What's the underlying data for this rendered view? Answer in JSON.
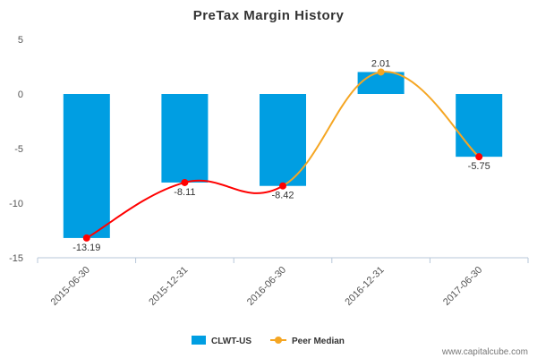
{
  "chart_data": {
    "type": "bar",
    "title": "PreTax Margin History",
    "categories": [
      "2015-06-30",
      "2015-12-31",
      "2016-06-30",
      "2016-12-31",
      "2017-06-30"
    ],
    "series": [
      {
        "name": "CLWT-US",
        "type": "bar",
        "values": [
          -13.19,
          -8.11,
          -8.42,
          2.01,
          -5.75
        ],
        "color": "#009ee2",
        "below_median_color": "#ff0000"
      },
      {
        "name": "Peer Median",
        "type": "line",
        "values": [
          -13.19,
          -8.11,
          -8.42,
          2.01,
          -5.75
        ],
        "color": "#f5a623",
        "below_median_color": "#ff0000"
      }
    ],
    "data_labels": [
      "-13.19",
      "-8.11",
      "-8.42",
      "2.01",
      "-5.75"
    ],
    "ylim": [
      -15,
      5
    ],
    "yticks": [
      5,
      0,
      -5,
      -10,
      -15
    ],
    "grid": false,
    "legend_position": "bottom-center"
  },
  "watermark": "www.capitalcube.com"
}
